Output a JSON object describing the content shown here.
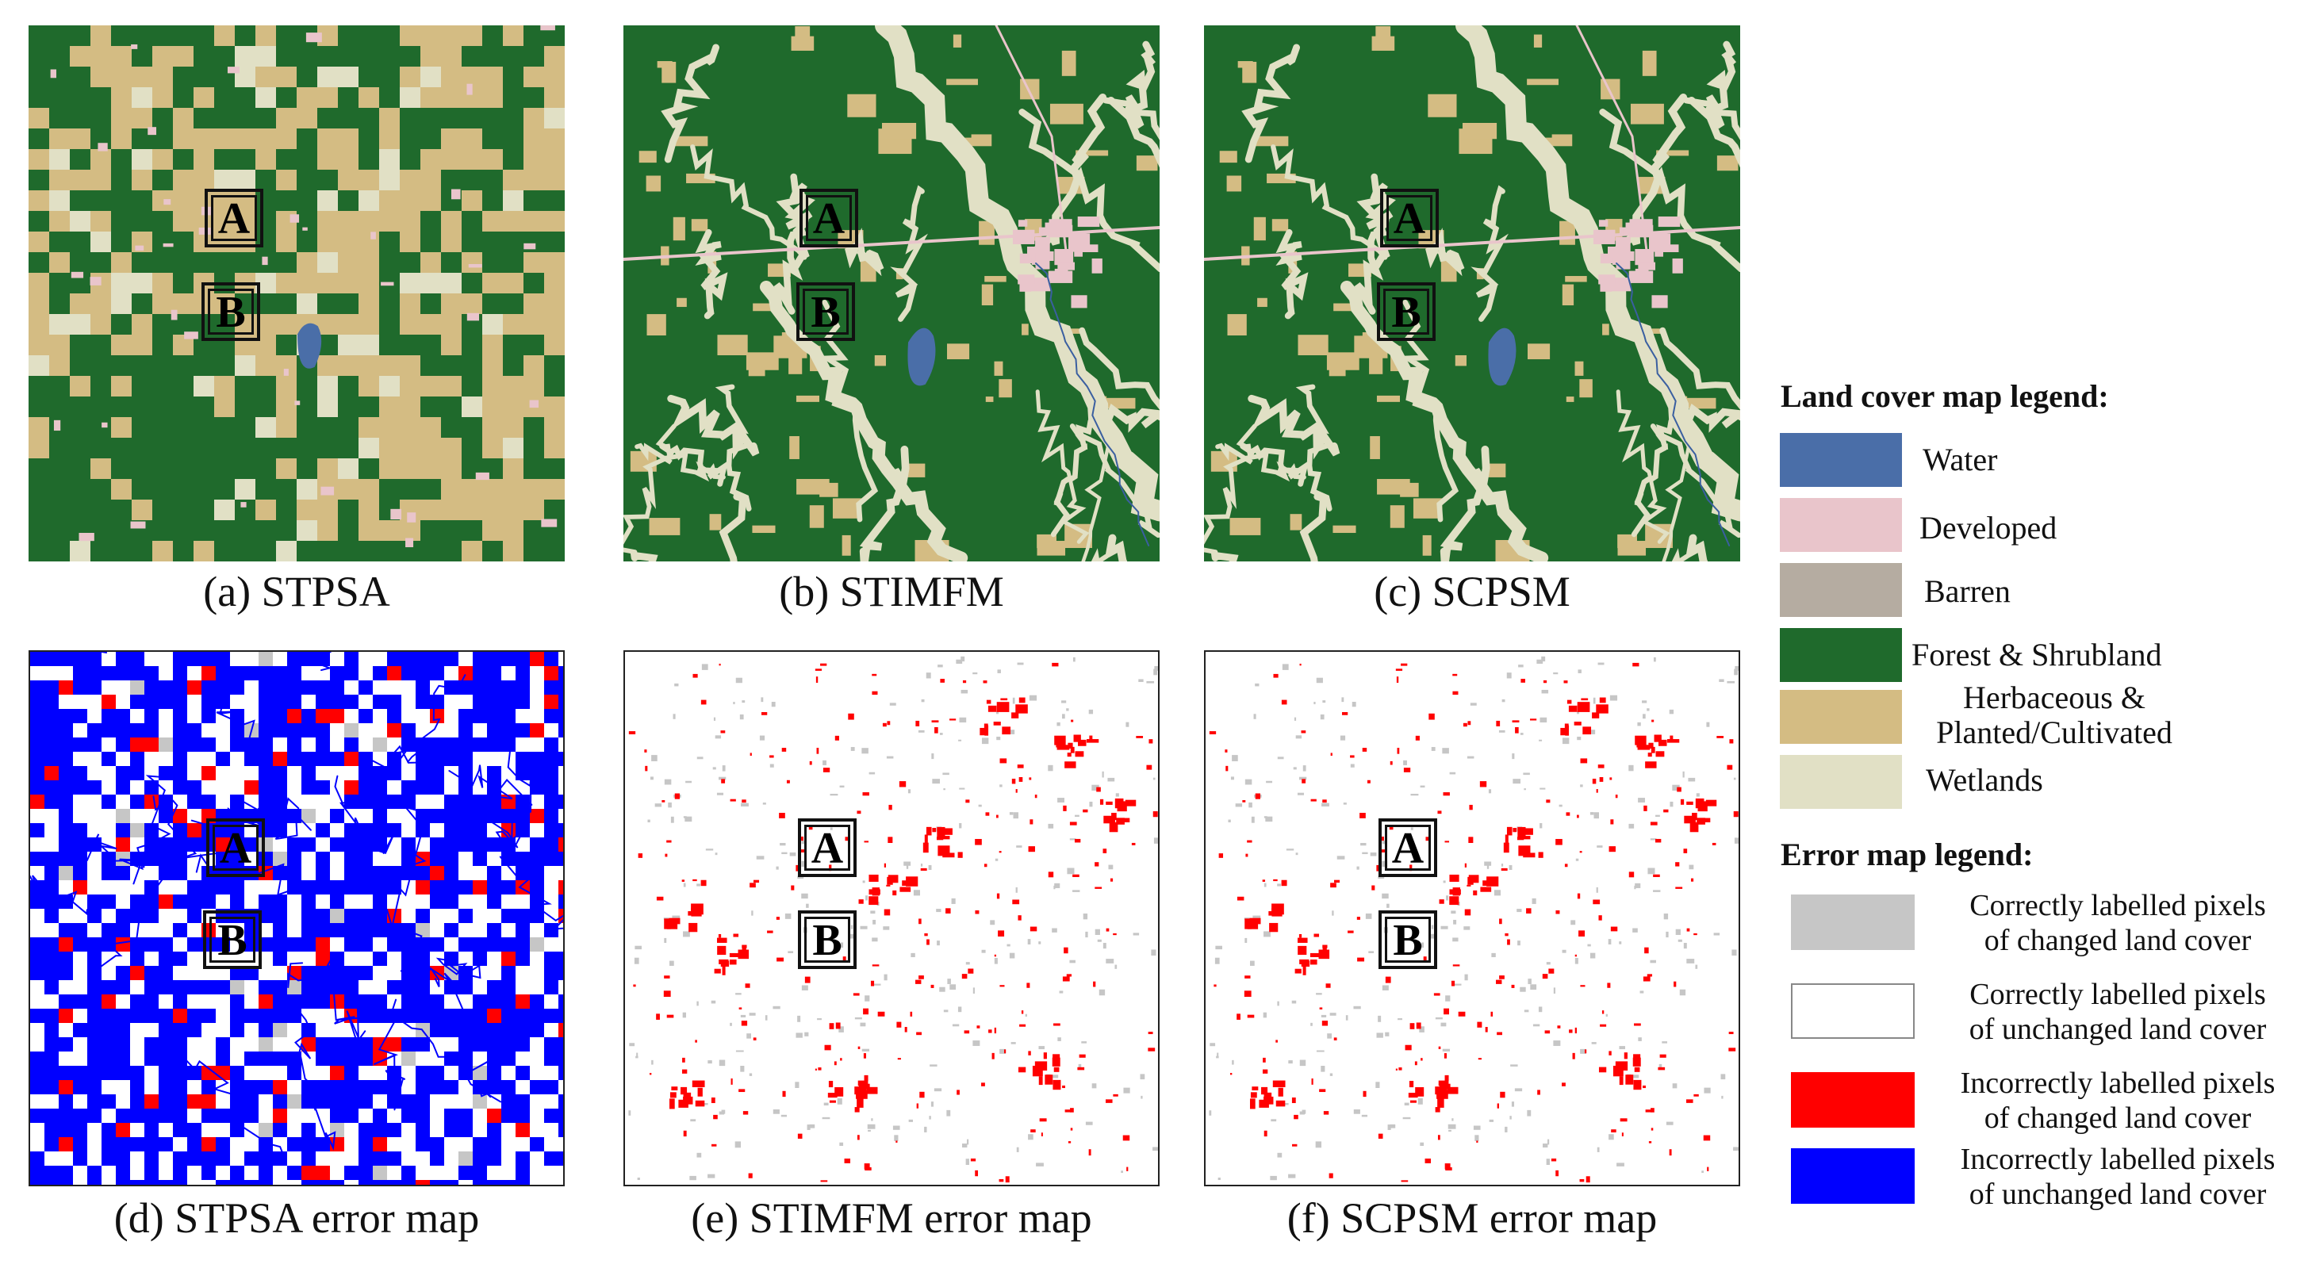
{
  "colors": {
    "water": "#4a6ea8",
    "developed": "#e9c5cb",
    "barren": "#b5aca1",
    "forest": "#1f6a2c",
    "herbaceous": "#d4bc83",
    "wetlands": "#e1e0c5",
    "correct_changed": "#c6c6c6",
    "correct_unchanged": "#ffffff",
    "incorrect_changed": "#ff0000",
    "incorrect_unchanged": "#0000ff"
  },
  "panels": [
    {
      "caption": "(a) STPSA",
      "box_a": "A",
      "box_b": "B",
      "type": "stpsa"
    },
    {
      "caption": "(b) STIMFM",
      "box_a": "A",
      "box_b": "B",
      "type": "landcover"
    },
    {
      "caption": "(c) SCPSM",
      "box_a": "A",
      "box_b": "B",
      "type": "landcover"
    },
    {
      "caption": "(d) STPSA error map",
      "box_a": "A",
      "box_b": "B",
      "type": "error_stpsa"
    },
    {
      "caption": "(e) STIMFM error map",
      "box_a": "A",
      "box_b": "B",
      "type": "error"
    },
    {
      "caption": "(f) SCPSM error map",
      "box_a": "A",
      "box_b": "B",
      "type": "error"
    }
  ],
  "land_cover_legend": {
    "title": "Land cover map legend:",
    "items": [
      {
        "label": "Water",
        "color": "#4a6ea8"
      },
      {
        "label": "Developed",
        "color": "#e9c5cb"
      },
      {
        "label": "Barren",
        "color": "#b5aca1"
      },
      {
        "label": "Forest & Shrubland",
        "color": "#1f6a2c"
      },
      {
        "label_line1": "Herbaceous &",
        "label_line2": "Planted/Cultivated",
        "color": "#d4bc83"
      },
      {
        "label": "Wetlands",
        "color": "#e1e0c5"
      }
    ]
  },
  "error_legend": {
    "title": "Error map legend:",
    "items": [
      {
        "line1": "Correctly labelled pixels",
        "line2": "of changed land cover",
        "color": "#c6c6c6"
      },
      {
        "line1": "Correctly labelled pixels",
        "line2": "of unchanged land cover",
        "color": "#ffffff"
      },
      {
        "line1": "Incorrectly labelled pixels",
        "line2": "of changed land cover",
        "color": "#ff0000"
      },
      {
        "line1": "Incorrectly labelled pixels",
        "line2": "of unchanged land cover",
        "color": "#0000ff"
      }
    ]
  }
}
